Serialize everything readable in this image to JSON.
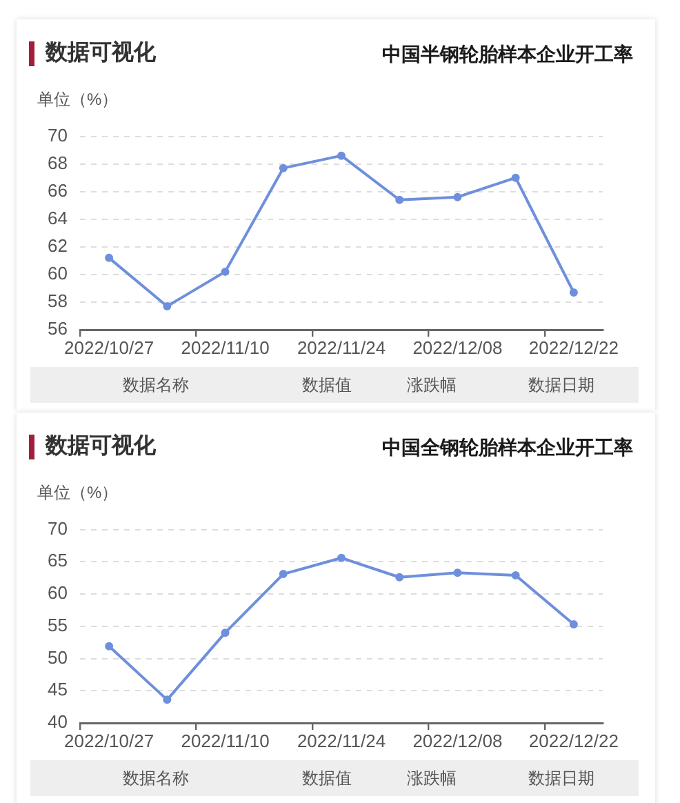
{
  "chart_data": [
    {
      "type": "line",
      "subtitle": "数据可视化",
      "title": "中国半钢轮胎样本企业开工率",
      "ylabel": "单位（%）",
      "categories": [
        "2022/10/27",
        null,
        "2022/11/10",
        null,
        "2022/11/24",
        null,
        "2022/12/08",
        null,
        "2022/12/22"
      ],
      "values": [
        61.2,
        57.7,
        60.2,
        67.7,
        68.6,
        65.4,
        65.6,
        67.0,
        58.7
      ],
      "color": "#6e8fdc",
      "ylim": [
        56,
        70
      ],
      "yticks": [
        56,
        58,
        60,
        62,
        64,
        66,
        68,
        70
      ],
      "grid": "y",
      "marker": "circle",
      "line_style": "solid",
      "annotations": [
        "数据名称",
        "数据值",
        "涨跌幅",
        "数据日期"
      ]
    },
    {
      "type": "line",
      "subtitle": "数据可视化",
      "title": "中国全钢轮胎样本企业开工率",
      "ylabel": "单位（%）",
      "categories": [
        "2022/10/27",
        null,
        "2022/11/10",
        null,
        "2022/11/24",
        null,
        "2022/12/08",
        null,
        "2022/12/22"
      ],
      "values": [
        51.9,
        43.6,
        54.0,
        63.1,
        65.6,
        62.6,
        63.3,
        62.9,
        55.3
      ],
      "color": "#6e8fdc",
      "ylim": [
        40,
        70
      ],
      "yticks": [
        40,
        45,
        50,
        55,
        60,
        65,
        70
      ],
      "grid": "y",
      "marker": "circle",
      "line_style": "solid",
      "annotations": [
        "数据名称",
        "数据值",
        "涨跌幅",
        "数据日期"
      ]
    }
  ]
}
